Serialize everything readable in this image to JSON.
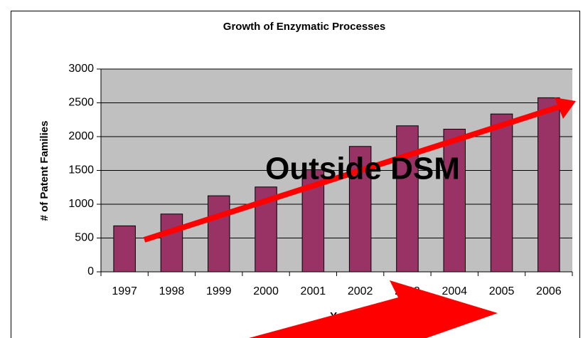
{
  "chart_data": {
    "type": "bar",
    "title": "Growth of Enzymatic Processes",
    "x_label": "Year",
    "y_label": "# of Patent Families",
    "annotation": "Outside DSM",
    "categories": [
      "1997",
      "1998",
      "1999",
      "2000",
      "2001",
      "2002",
      "2003",
      "2004",
      "2005",
      "2006"
    ],
    "values": [
      680,
      855,
      1125,
      1255,
      1510,
      1855,
      2160,
      2110,
      2335,
      2575
    ],
    "color": "#993366",
    "ylim": [
      0,
      3000
    ],
    "yticks": [
      0,
      500,
      1000,
      1500,
      2000,
      2500,
      3000
    ],
    "grid": true
  }
}
